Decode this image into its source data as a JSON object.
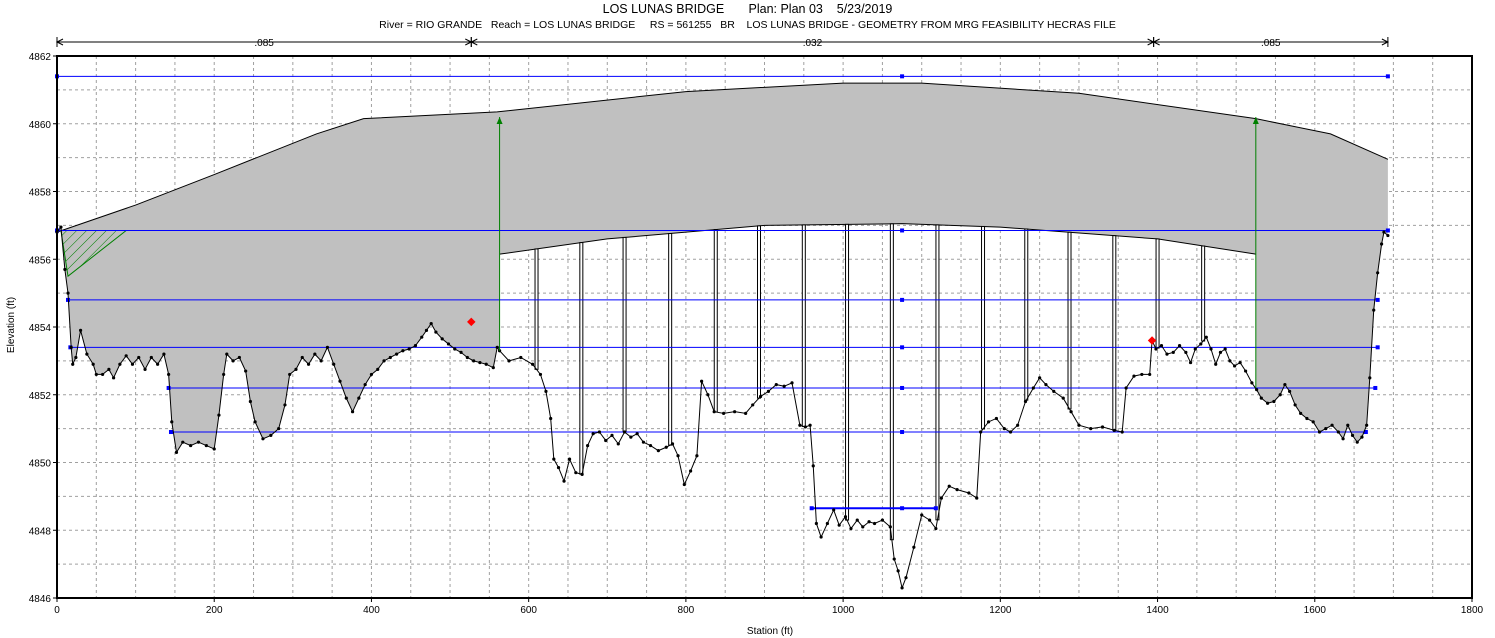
{
  "header": {
    "title": "LOS LUNAS BRIDGE       Plan: Plan 03    5/23/2019",
    "subtitle": "River = RIO GRANDE   Reach = LOS LUNAS BRIDGE     RS = 561255   BR    LOS LUNAS BRIDGE - GEOMETRY FROM MRG FEASIBILITY HECRAS FILE"
  },
  "chart_data": {
    "type": "line",
    "title": "LOS LUNAS BRIDGE       Plan: Plan 03    5/23/2019",
    "subtitle": "River = RIO GRANDE   Reach = LOS LUNAS BRIDGE     RS = 561255   BR    LOS LUNAS BRIDGE - GEOMETRY FROM MRG FEASIBILITY HECRAS FILE",
    "xlabel": "Station (ft)",
    "ylabel": "Elevation (ft)",
    "xlim": [
      0,
      1800
    ],
    "ylim": [
      4846,
      4862
    ],
    "xticks": [
      "0",
      "200",
      "400",
      "600",
      "800",
      "1000",
      "1200",
      "1400",
      "1600",
      "1800"
    ],
    "yticks": [
      "4846",
      "4848",
      "4850",
      "4852",
      "4854",
      "4856",
      "4858",
      "4860",
      "4862"
    ],
    "grid": true,
    "colors": {
      "ground": "#000000",
      "deck": "#c0c0c0",
      "water": "#0000ff",
      "abutment": "#008000",
      "bank": "#ff0000",
      "ineffective": "#008000"
    },
    "mannings_n": [
      {
        "label": ".085",
        "from": 0,
        "to": 527
      },
      {
        "label": ".032",
        "from": 527,
        "to": 1395
      },
      {
        "label": ".085",
        "from": 1395,
        "to": 1693
      }
    ],
    "bank_stations": [
      [
        527,
        4854.15
      ],
      [
        1393,
        4853.6
      ]
    ],
    "abutments": [
      [
        563,
        4853.3,
        4860.2
      ],
      [
        1525,
        4852.2,
        4860.2
      ]
    ],
    "water_surfaces": [
      {
        "elev": 4861.4,
        "from": 0,
        "to": 1693
      },
      {
        "elev": 4856.85,
        "from": 0,
        "to": 1693
      },
      {
        "elev": 4854.8,
        "from": 14,
        "to": 1680
      },
      {
        "elev": 4853.4,
        "from": 17,
        "to": 1680
      },
      {
        "elev": 4852.2,
        "from": 142,
        "to": 1677
      },
      {
        "elev": 4850.9,
        "from": 145,
        "to": 1665
      },
      {
        "elev": 4848.65,
        "from": 960,
        "to": 1118
      }
    ],
    "deck_high": [
      [
        0,
        4856.8
      ],
      [
        100,
        4857.6
      ],
      [
        200,
        4858.5
      ],
      [
        330,
        4859.7
      ],
      [
        390,
        4860.15
      ],
      [
        560,
        4860.35
      ],
      [
        800,
        4860.95
      ],
      [
        1000,
        4861.2
      ],
      [
        1100,
        4861.2
      ],
      [
        1300,
        4860.9
      ],
      [
        1525,
        4860.15
      ],
      [
        1620,
        4859.7
      ],
      [
        1693,
        4858.95
      ]
    ],
    "deck_low": [
      [
        563,
        4856.15
      ],
      [
        700,
        4856.6
      ],
      [
        900,
        4857.0
      ],
      [
        1075,
        4857.05
      ],
      [
        1200,
        4856.95
      ],
      [
        1400,
        4856.6
      ],
      [
        1525,
        4856.15
      ]
    ],
    "piers": [
      610,
      667,
      722,
      780,
      838,
      893,
      950,
      1005,
      1062,
      1120,
      1178,
      1233,
      1288,
      1345,
      1400,
      1458
    ],
    "ground": [
      [
        0,
        4856.8
      ],
      [
        5,
        4856.95
      ],
      [
        10,
        4855.7
      ],
      [
        14,
        4855
      ],
      [
        18,
        4853.4
      ],
      [
        20,
        4852.9
      ],
      [
        24,
        4853.1
      ],
      [
        30,
        4853.9
      ],
      [
        38,
        4853.2
      ],
      [
        46,
        4852.9
      ],
      [
        50,
        4852.6
      ],
      [
        58,
        4852.6
      ],
      [
        66,
        4852.75
      ],
      [
        72,
        4852.5
      ],
      [
        80,
        4852.9
      ],
      [
        88,
        4853.15
      ],
      [
        96,
        4852.9
      ],
      [
        104,
        4853.1
      ],
      [
        112,
        4852.75
      ],
      [
        120,
        4853.1
      ],
      [
        128,
        4852.9
      ],
      [
        136,
        4853.2
      ],
      [
        142,
        4852.6
      ],
      [
        146,
        4851.2
      ],
      [
        152,
        4850.3
      ],
      [
        160,
        4850.6
      ],
      [
        170,
        4850.5
      ],
      [
        180,
        4850.6
      ],
      [
        190,
        4850.5
      ],
      [
        200,
        4850.4
      ],
      [
        206,
        4851.4
      ],
      [
        212,
        4852.6
      ],
      [
        216,
        4853.2
      ],
      [
        224,
        4853
      ],
      [
        232,
        4853.1
      ],
      [
        240,
        4852.7
      ],
      [
        246,
        4851.8
      ],
      [
        252,
        4851.2
      ],
      [
        262,
        4850.7
      ],
      [
        272,
        4850.8
      ],
      [
        282,
        4851
      ],
      [
        290,
        4851.7
      ],
      [
        296,
        4852.6
      ],
      [
        304,
        4852.75
      ],
      [
        312,
        4853.1
      ],
      [
        320,
        4852.9
      ],
      [
        328,
        4853.2
      ],
      [
        336,
        4853
      ],
      [
        344,
        4853.4
      ],
      [
        352,
        4852.9
      ],
      [
        360,
        4852.4
      ],
      [
        368,
        4851.9
      ],
      [
        376,
        4851.5
      ],
      [
        384,
        4851.9
      ],
      [
        392,
        4852.3
      ],
      [
        400,
        4852.6
      ],
      [
        408,
        4852.75
      ],
      [
        416,
        4853
      ],
      [
        424,
        4853.1
      ],
      [
        432,
        4853.2
      ],
      [
        440,
        4853.3
      ],
      [
        448,
        4853.35
      ],
      [
        456,
        4853.45
      ],
      [
        464,
        4853.7
      ],
      [
        470,
        4853.9
      ],
      [
        476,
        4854.1
      ],
      [
        482,
        4853.85
      ],
      [
        490,
        4853.65
      ],
      [
        498,
        4853.5
      ],
      [
        506,
        4853.35
      ],
      [
        514,
        4853.25
      ],
      [
        522,
        4853.1
      ],
      [
        530,
        4853
      ],
      [
        538,
        4852.95
      ],
      [
        546,
        4852.9
      ],
      [
        555,
        4852.8
      ],
      [
        560,
        4853.4
      ],
      [
        563,
        4853.3
      ],
      [
        575,
        4853
      ],
      [
        590,
        4853.1
      ],
      [
        605,
        4852.9
      ],
      [
        615,
        4852.6
      ],
      [
        622,
        4852.1
      ],
      [
        628,
        4851.3
      ],
      [
        632,
        4850.1
      ],
      [
        638,
        4849.85
      ],
      [
        645,
        4849.45
      ],
      [
        652,
        4850.1
      ],
      [
        660,
        4849.7
      ],
      [
        668,
        4849.65
      ],
      [
        675,
        4850.5
      ],
      [
        682,
        4850.85
      ],
      [
        690,
        4850.9
      ],
      [
        698,
        4850.65
      ],
      [
        706,
        4850.8
      ],
      [
        714,
        4850.55
      ],
      [
        722,
        4850.9
      ],
      [
        730,
        4850.75
      ],
      [
        738,
        4850.85
      ],
      [
        746,
        4850.6
      ],
      [
        755,
        4850.5
      ],
      [
        765,
        4850.35
      ],
      [
        775,
        4850.45
      ],
      [
        783,
        4850.55
      ],
      [
        790,
        4850.2
      ],
      [
        798,
        4849.35
      ],
      [
        806,
        4849.75
      ],
      [
        814,
        4850.2
      ],
      [
        820,
        4852.4
      ],
      [
        828,
        4852
      ],
      [
        836,
        4851.5
      ],
      [
        848,
        4851.45
      ],
      [
        862,
        4851.5
      ],
      [
        876,
        4851.45
      ],
      [
        885,
        4851.7
      ],
      [
        895,
        4851.95
      ],
      [
        905,
        4852.1
      ],
      [
        915,
        4852.3
      ],
      [
        925,
        4852.25
      ],
      [
        935,
        4852.35
      ],
      [
        945,
        4851.1
      ],
      [
        952,
        4851.05
      ],
      [
        958,
        4851.1
      ],
      [
        962,
        4849.9
      ],
      [
        966,
        4848.2
      ],
      [
        972,
        4847.8
      ],
      [
        980,
        4848.2
      ],
      [
        988,
        4848.6
      ],
      [
        995,
        4848.15
      ],
      [
        1003,
        4848.4
      ],
      [
        1010,
        4848.05
      ],
      [
        1018,
        4848.3
      ],
      [
        1025,
        4848.1
      ],
      [
        1033,
        4848.25
      ],
      [
        1040,
        4848.2
      ],
      [
        1050,
        4848.3
      ],
      [
        1060,
        4848.1
      ],
      [
        1065,
        4847.15
      ],
      [
        1070,
        4846.8
      ],
      [
        1075,
        4846.3
      ],
      [
        1080,
        4846.6
      ],
      [
        1090,
        4847.5
      ],
      [
        1100,
        4848.45
      ],
      [
        1110,
        4848.3
      ],
      [
        1118,
        4848.05
      ],
      [
        1125,
        4848.95
      ],
      [
        1135,
        4849.3
      ],
      [
        1145,
        4849.2
      ],
      [
        1160,
        4849.1
      ],
      [
        1170,
        4848.95
      ],
      [
        1175,
        4850.9
      ],
      [
        1185,
        4851.2
      ],
      [
        1195,
        4851.3
      ],
      [
        1205,
        4851.0
      ],
      [
        1213,
        4850.9
      ],
      [
        1222,
        4851.1
      ],
      [
        1232,
        4851.8
      ],
      [
        1242,
        4852.2
      ],
      [
        1250,
        4852.5
      ],
      [
        1258,
        4852.3
      ],
      [
        1268,
        4852.1
      ],
      [
        1280,
        4851.9
      ],
      [
        1290,
        4851.5
      ],
      [
        1300,
        4851.1
      ],
      [
        1315,
        4851.0
      ],
      [
        1330,
        4851.05
      ],
      [
        1345,
        4850.95
      ],
      [
        1355,
        4850.9
      ],
      [
        1360,
        4852.2
      ],
      [
        1370,
        4852.55
      ],
      [
        1380,
        4852.6
      ],
      [
        1390,
        4852.6
      ],
      [
        1393,
        4853.6
      ],
      [
        1398,
        4853.35
      ],
      [
        1405,
        4853.45
      ],
      [
        1412,
        4853.2
      ],
      [
        1420,
        4853.25
      ],
      [
        1428,
        4853.45
      ],
      [
        1436,
        4853.25
      ],
      [
        1442,
        4852.95
      ],
      [
        1448,
        4853.35
      ],
      [
        1455,
        4853.5
      ],
      [
        1462,
        4853.7
      ],
      [
        1468,
        4853.35
      ],
      [
        1474,
        4852.9
      ],
      [
        1480,
        4853.25
      ],
      [
        1486,
        4853.35
      ],
      [
        1492,
        4853.0
      ],
      [
        1498,
        4852.85
      ],
      [
        1505,
        4852.95
      ],
      [
        1512,
        4852.7
      ],
      [
        1520,
        4852.35
      ],
      [
        1526,
        4852.15
      ],
      [
        1532,
        4851.9
      ],
      [
        1540,
        4851.75
      ],
      [
        1548,
        4851.8
      ],
      [
        1556,
        4852.0
      ],
      [
        1562,
        4852.3
      ],
      [
        1568,
        4852.1
      ],
      [
        1575,
        4851.7
      ],
      [
        1582,
        4851.45
      ],
      [
        1590,
        4851.3
      ],
      [
        1598,
        4851.2
      ],
      [
        1606,
        4850.9
      ],
      [
        1614,
        4851.0
      ],
      [
        1622,
        4851.1
      ],
      [
        1630,
        4850.9
      ],
      [
        1636,
        4850.7
      ],
      [
        1642,
        4851.1
      ],
      [
        1648,
        4850.8
      ],
      [
        1654,
        4850.6
      ],
      [
        1660,
        4850.75
      ],
      [
        1666,
        4851.1
      ],
      [
        1670,
        4852.5
      ],
      [
        1675,
        4854.5
      ],
      [
        1680,
        4855.6
      ],
      [
        1685,
        4856.45
      ],
      [
        1688,
        4856.8
      ],
      [
        1693,
        4856.7
      ]
    ]
  }
}
